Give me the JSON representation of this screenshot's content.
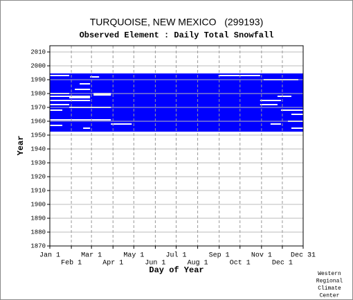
{
  "chart_data": {
    "type": "availability",
    "title": "TURQUOISE, NEW MEXICO   (299193)",
    "subtitle": "Observed Element : Daily Total Snowfall",
    "x_label": "Day of Year",
    "y_label": "Year",
    "credit": [
      "Western",
      "Regional",
      "Climate",
      "Center"
    ],
    "color": "#0000ff",
    "grid": true,
    "xlim": [
      1,
      366
    ],
    "ylim": [
      1870,
      2014.5
    ],
    "xticks": [
      {
        "value": 1,
        "label": "Jan 1"
      },
      {
        "value": 32,
        "label": "Feb 1"
      },
      {
        "value": 61,
        "label": "Mar 1"
      },
      {
        "value": 92,
        "label": "Apr 1"
      },
      {
        "value": 122,
        "label": "May 1"
      },
      {
        "value": 153,
        "label": "Jun 1"
      },
      {
        "value": 183,
        "label": "Jul 1"
      },
      {
        "value": 214,
        "label": "Aug 1"
      },
      {
        "value": 245,
        "label": "Sep 1"
      },
      {
        "value": 275,
        "label": "Oct 1"
      },
      {
        "value": 306,
        "label": "Nov 1"
      },
      {
        "value": 336,
        "label": "Dec 1"
      },
      {
        "value": 366,
        "label": "Dec 31"
      }
    ],
    "yticks": [
      1870,
      1880,
      1890,
      1900,
      1910,
      1920,
      1930,
      1940,
      1950,
      1960,
      1970,
      1980,
      1990,
      2000,
      2010
    ],
    "block": {
      "start_year": 1953,
      "end_year": 1994,
      "from": 1,
      "to": 366
    },
    "gaps": [
      {
        "year": 1993,
        "from": 1,
        "to": 29
      },
      {
        "year": 1993,
        "from": 244,
        "to": 304
      },
      {
        "year": 1992,
        "from": 59,
        "to": 72
      },
      {
        "year": 1990,
        "from": 309,
        "to": 359
      },
      {
        "year": 1987,
        "from": 44,
        "to": 59
      },
      {
        "year": 1983,
        "from": 37,
        "to": 59
      },
      {
        "year": 1980,
        "from": 1,
        "to": 29
      },
      {
        "year": 1980,
        "from": 64,
        "to": 89
      },
      {
        "year": 1979,
        "from": 64,
        "to": 89
      },
      {
        "year": 1978,
        "from": 1,
        "to": 59
      },
      {
        "year": 1978,
        "from": 329,
        "to": 349
      },
      {
        "year": 1977,
        "from": 29,
        "to": 59
      },
      {
        "year": 1975,
        "from": 1,
        "to": 59
      },
      {
        "year": 1975,
        "from": 304,
        "to": 334
      },
      {
        "year": 1972,
        "from": 1,
        "to": 29
      },
      {
        "year": 1972,
        "from": 304,
        "to": 329
      },
      {
        "year": 1970,
        "from": 29,
        "to": 89
      },
      {
        "year": 1968,
        "from": 1,
        "to": 19
      },
      {
        "year": 1968,
        "from": 334,
        "to": 366
      },
      {
        "year": 1965,
        "from": 349,
        "to": 366
      },
      {
        "year": 1961,
        "from": 1,
        "to": 89
      },
      {
        "year": 1960,
        "from": 344,
        "to": 366
      },
      {
        "year": 1958,
        "from": 89,
        "to": 119
      },
      {
        "year": 1958,
        "from": 319,
        "to": 334
      },
      {
        "year": 1957,
        "from": 1,
        "to": 19
      },
      {
        "year": 1955,
        "from": 49,
        "to": 59
      },
      {
        "year": 1955,
        "from": 349,
        "to": 366
      }
    ]
  }
}
